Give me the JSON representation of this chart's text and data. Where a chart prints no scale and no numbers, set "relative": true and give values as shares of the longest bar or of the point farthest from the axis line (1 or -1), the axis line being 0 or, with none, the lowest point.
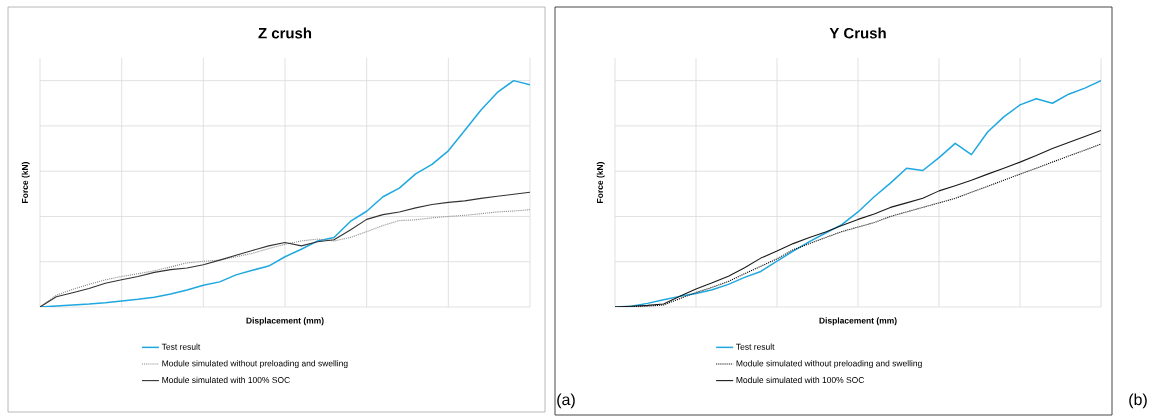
{
  "chart_data": [
    {
      "type": "line",
      "title": "Z crush",
      "xlabel": "Displacement (mm)",
      "ylabel": "Force (kN)",
      "relative": true,
      "grid": true,
      "legend": "bottom",
      "annotations": [
        "(a)"
      ],
      "categories": [
        null,
        null,
        null,
        null,
        null,
        null,
        null,
        null,
        null,
        null,
        null,
        null,
        null,
        null,
        null,
        null,
        null,
        null,
        null,
        null,
        null,
        null,
        null,
        null,
        null,
        null,
        null,
        null,
        null,
        null,
        null
      ],
      "series": [
        {
          "name": "Test result",
          "color": "#1fa8e0",
          "line_style": "solid",
          "values": [
            0,
            0.004,
            0.009,
            0.013,
            0.019,
            0.027,
            0.034,
            0.043,
            0.057,
            0.075,
            0.096,
            0.111,
            0.142,
            0.162,
            0.181,
            0.222,
            0.255,
            0.292,
            0.307,
            0.378,
            0.423,
            0.487,
            0.525,
            0.588,
            0.63,
            0.69,
            0.78,
            0.87,
            0.948,
            1,
            0.982
          ]
        },
        {
          "name": "Module simulated without preloading and swelling",
          "color": "#8c8c8c",
          "line_style": "dotted",
          "values": [
            0,
            0.052,
            0.078,
            0.1,
            0.12,
            0.135,
            0.147,
            0.16,
            0.177,
            0.195,
            0.202,
            0.207,
            0.222,
            0.237,
            0.258,
            0.277,
            0.292,
            0.3,
            0.292,
            0.307,
            0.333,
            0.36,
            0.382,
            0.385,
            0.394,
            0.4,
            0.405,
            0.412,
            0.42,
            0.424,
            0.43
          ]
        },
        {
          "name": "Module simulated with 100% SOC",
          "color": "#333333",
          "line_style": "solid",
          "values": [
            0,
            0.045,
            0.063,
            0.082,
            0.105,
            0.12,
            0.135,
            0.153,
            0.165,
            0.172,
            0.187,
            0.207,
            0.229,
            0.25,
            0.27,
            0.285,
            0.27,
            0.288,
            0.297,
            0.34,
            0.387,
            0.408,
            0.42,
            0.438,
            0.453,
            0.462,
            0.469,
            0.48,
            0.489,
            0.498,
            0.507
          ]
        }
      ]
    },
    {
      "type": "line",
      "title": "Y Crush",
      "xlabel": "Displacement (mm)",
      "ylabel": "Force (kN)",
      "relative": true,
      "grid": true,
      "legend": "bottom",
      "annotations": [
        "(b)"
      ],
      "categories": [
        null,
        null,
        null,
        null,
        null,
        null,
        null,
        null,
        null,
        null,
        null,
        null,
        null,
        null,
        null,
        null,
        null,
        null,
        null,
        null,
        null,
        null,
        null,
        null,
        null,
        null,
        null,
        null,
        null,
        null,
        null
      ],
      "series": [
        {
          "name": "Test result",
          "color": "#1fa8e0",
          "line_style": "solid",
          "values": [
            0,
            0.003,
            0.016,
            0.032,
            0.047,
            0.06,
            0.076,
            0.1,
            0.131,
            0.157,
            0.203,
            0.247,
            0.289,
            0.327,
            0.364,
            0.42,
            0.487,
            0.547,
            0.613,
            0.603,
            0.66,
            0.723,
            0.673,
            0.773,
            0.84,
            0.893,
            0.92,
            0.9,
            0.94,
            0.967,
            1
          ]
        },
        {
          "name": "Module simulated without preloading and swelling",
          "color": "#000000",
          "line_style": "dotted",
          "values": [
            0,
            0.001,
            0.004,
            0.009,
            0.037,
            0.064,
            0.087,
            0.113,
            0.147,
            0.18,
            0.213,
            0.253,
            0.28,
            0.307,
            0.333,
            0.353,
            0.373,
            0.4,
            0.42,
            0.44,
            0.46,
            0.48,
            0.507,
            0.533,
            0.56,
            0.587,
            0.613,
            0.64,
            0.667,
            0.693,
            0.72
          ]
        },
        {
          "name": "Module simulated with 100% SOC",
          "color": "#1a1a1a",
          "line_style": "solid",
          "values": [
            0,
            0.003,
            0.007,
            0.013,
            0.047,
            0.08,
            0.107,
            0.136,
            0.173,
            0.216,
            0.247,
            0.28,
            0.307,
            0.331,
            0.36,
            0.387,
            0.411,
            0.44,
            0.46,
            0.48,
            0.513,
            0.536,
            0.56,
            0.587,
            0.613,
            0.64,
            0.669,
            0.7,
            0.727,
            0.753,
            0.78
          ]
        }
      ]
    }
  ]
}
